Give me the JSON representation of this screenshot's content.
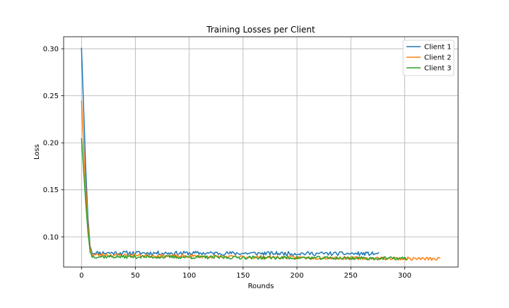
{
  "chart_data": {
    "type": "line",
    "title": "Training Losses per Client",
    "xlabel": "Rounds",
    "ylabel": "Loss",
    "xlim": [
      -16.6,
      349.6
    ],
    "ylim": [
      0.0679,
      0.3128
    ],
    "xticks": [
      0,
      50,
      100,
      150,
      200,
      250,
      300
    ],
    "yticks": [
      0.1,
      0.15,
      0.2,
      0.25,
      0.3
    ],
    "ytick_labels": [
      "0.10",
      "0.15",
      "0.20",
      "0.25",
      "0.30"
    ],
    "grid": true,
    "legend_position": "top-right",
    "series": [
      {
        "name": "Client 1",
        "color": "#1f77b4",
        "x_end": 276,
        "knots": [
          [
            0,
            0.301
          ],
          [
            2,
            0.235
          ],
          [
            4,
            0.17
          ],
          [
            6,
            0.12
          ],
          [
            8,
            0.09
          ],
          [
            10,
            0.083
          ],
          [
            276,
            0.082
          ]
        ],
        "noise": 0.0013,
        "seed": 11
      },
      {
        "name": "Client 2",
        "color": "#ff7f0e",
        "x_end": 333,
        "knots": [
          [
            0,
            0.245
          ],
          [
            2,
            0.195
          ],
          [
            4,
            0.15
          ],
          [
            6,
            0.112
          ],
          [
            8,
            0.088
          ],
          [
            10,
            0.081
          ],
          [
            150,
            0.0785
          ],
          [
            333,
            0.0765
          ]
        ],
        "noise": 0.0011,
        "seed": 23
      },
      {
        "name": "Client 3",
        "color": "#2ca02c",
        "x_end": 302,
        "knots": [
          [
            0,
            0.205
          ],
          [
            2,
            0.17
          ],
          [
            4,
            0.135
          ],
          [
            6,
            0.105
          ],
          [
            8,
            0.084
          ],
          [
            10,
            0.079
          ],
          [
            150,
            0.078
          ],
          [
            302,
            0.077
          ]
        ],
        "noise": 0.0011,
        "seed": 37
      }
    ]
  }
}
